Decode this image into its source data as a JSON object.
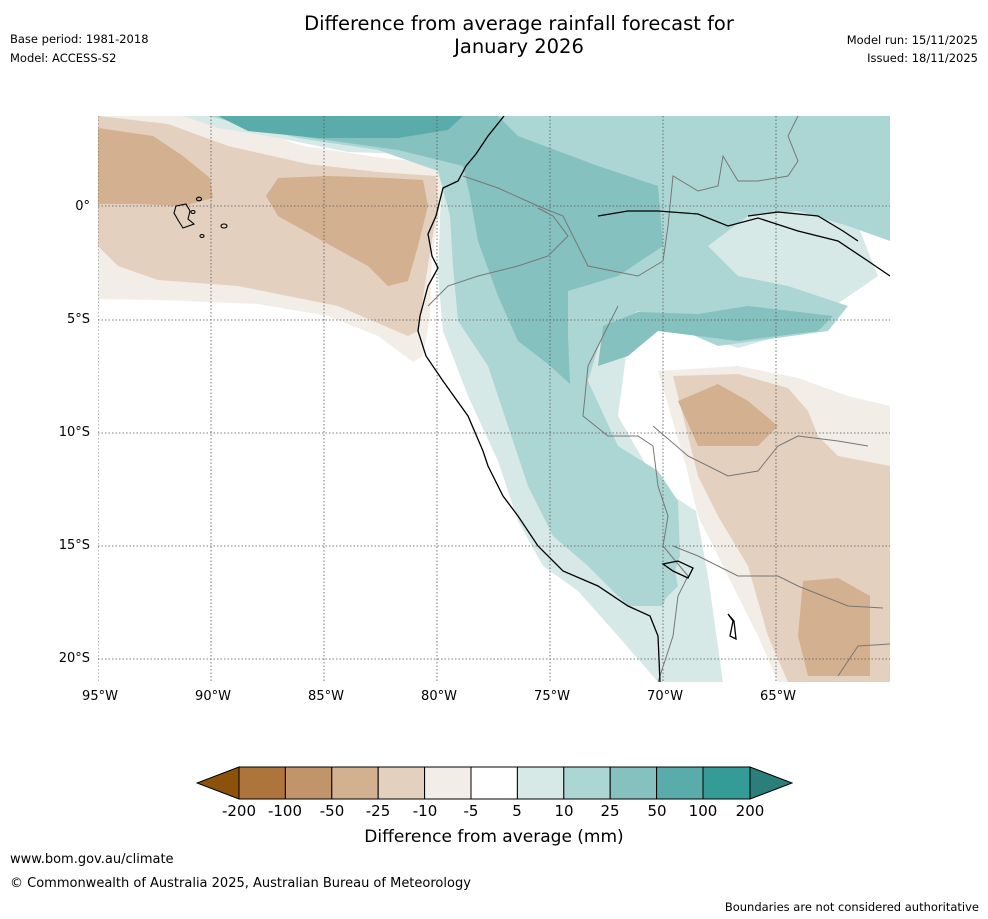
{
  "header": {
    "title_line1": "Difference from average rainfall forecast for",
    "title_line2": "January 2026",
    "base_period": "Base period: 1981-2018",
    "model": "Model: ACCESS-S2",
    "model_run": "Model run: 15/11/2025",
    "issued": "Issued: 18/11/2025"
  },
  "map": {
    "lat_ticks": [
      "0°",
      "5°S",
      "10°S",
      "15°S",
      "20°S"
    ],
    "lon_ticks": [
      "95°W",
      "90°W",
      "85°W",
      "80°W",
      "75°W",
      "70°W",
      "65°W"
    ]
  },
  "colorbar": {
    "title": "Difference from average (mm)",
    "labels": [
      "-200",
      "-100",
      "-50",
      "-25",
      "-10",
      "-5",
      "5",
      "10",
      "25",
      "50",
      "100",
      "200"
    ],
    "colors": [
      "#8c510a",
      "#ad743b",
      "#c1946a",
      "#d3b190",
      "#e3d0be",
      "#f2ede7",
      "#ffffff",
      "#d7e9e7",
      "#acd6d4",
      "#84c1bf",
      "#5aacaa",
      "#349b97",
      "#2a7f7b"
    ]
  },
  "footer": {
    "url": "www.bom.gov.au/climate",
    "copyright": "© Commonwealth of Australia 2025, Australian Bureau of Meteorology",
    "disclaimer": "Boundaries are not considered authoritative"
  }
}
